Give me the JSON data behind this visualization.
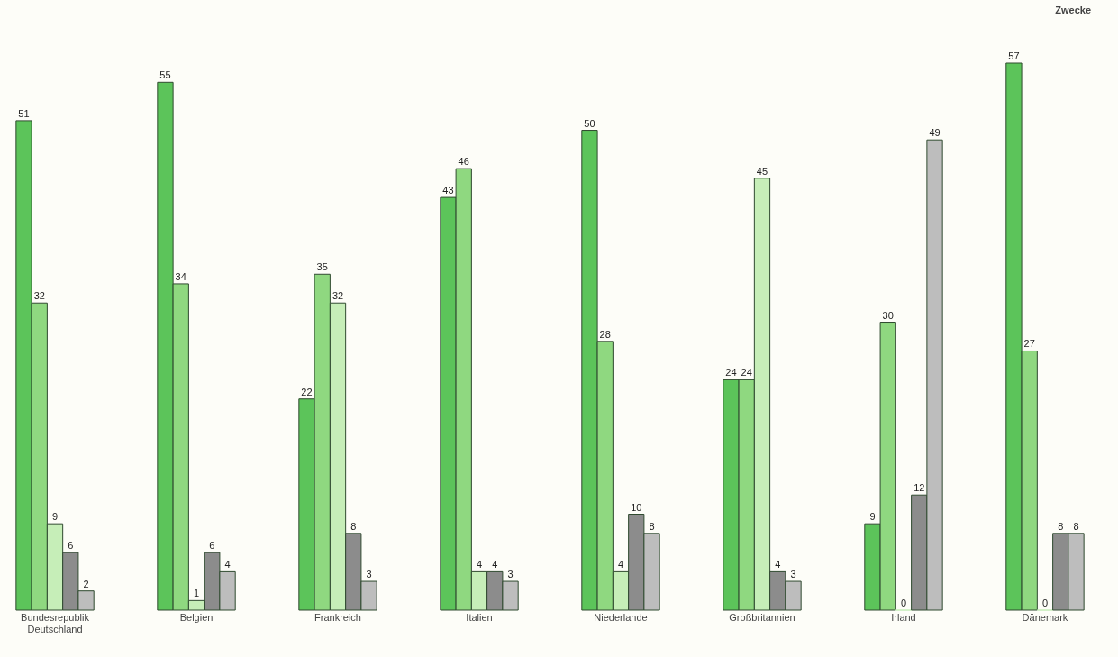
{
  "chart_data": {
    "type": "bar",
    "categories": [
      "Bundesrepublik Deutschland",
      "Belgien",
      "Frankreich",
      "Italien",
      "Niederlande",
      "Großbritannien",
      "Irland",
      "Dänemark"
    ],
    "series": [
      {
        "color": "#5cc45a",
        "values": [
          51,
          55,
          22,
          43,
          50,
          24,
          9,
          57
        ]
      },
      {
        "color": "#8fd880",
        "values": [
          32,
          34,
          35,
          46,
          28,
          24,
          30,
          27
        ]
      },
      {
        "color": "#c6eeb8",
        "values": [
          9,
          1,
          32,
          4,
          4,
          45,
          0,
          0
        ]
      },
      {
        "color": "#8c8c8c",
        "values": [
          6,
          6,
          8,
          4,
          10,
          4,
          12,
          8
        ]
      },
      {
        "color": "#bdbdbd",
        "values": [
          2,
          4,
          3,
          3,
          8,
          3,
          49,
          8
        ]
      }
    ],
    "data_labels": true,
    "legend": false,
    "grid": false,
    "annotations": [
      "Zwecke"
    ]
  }
}
